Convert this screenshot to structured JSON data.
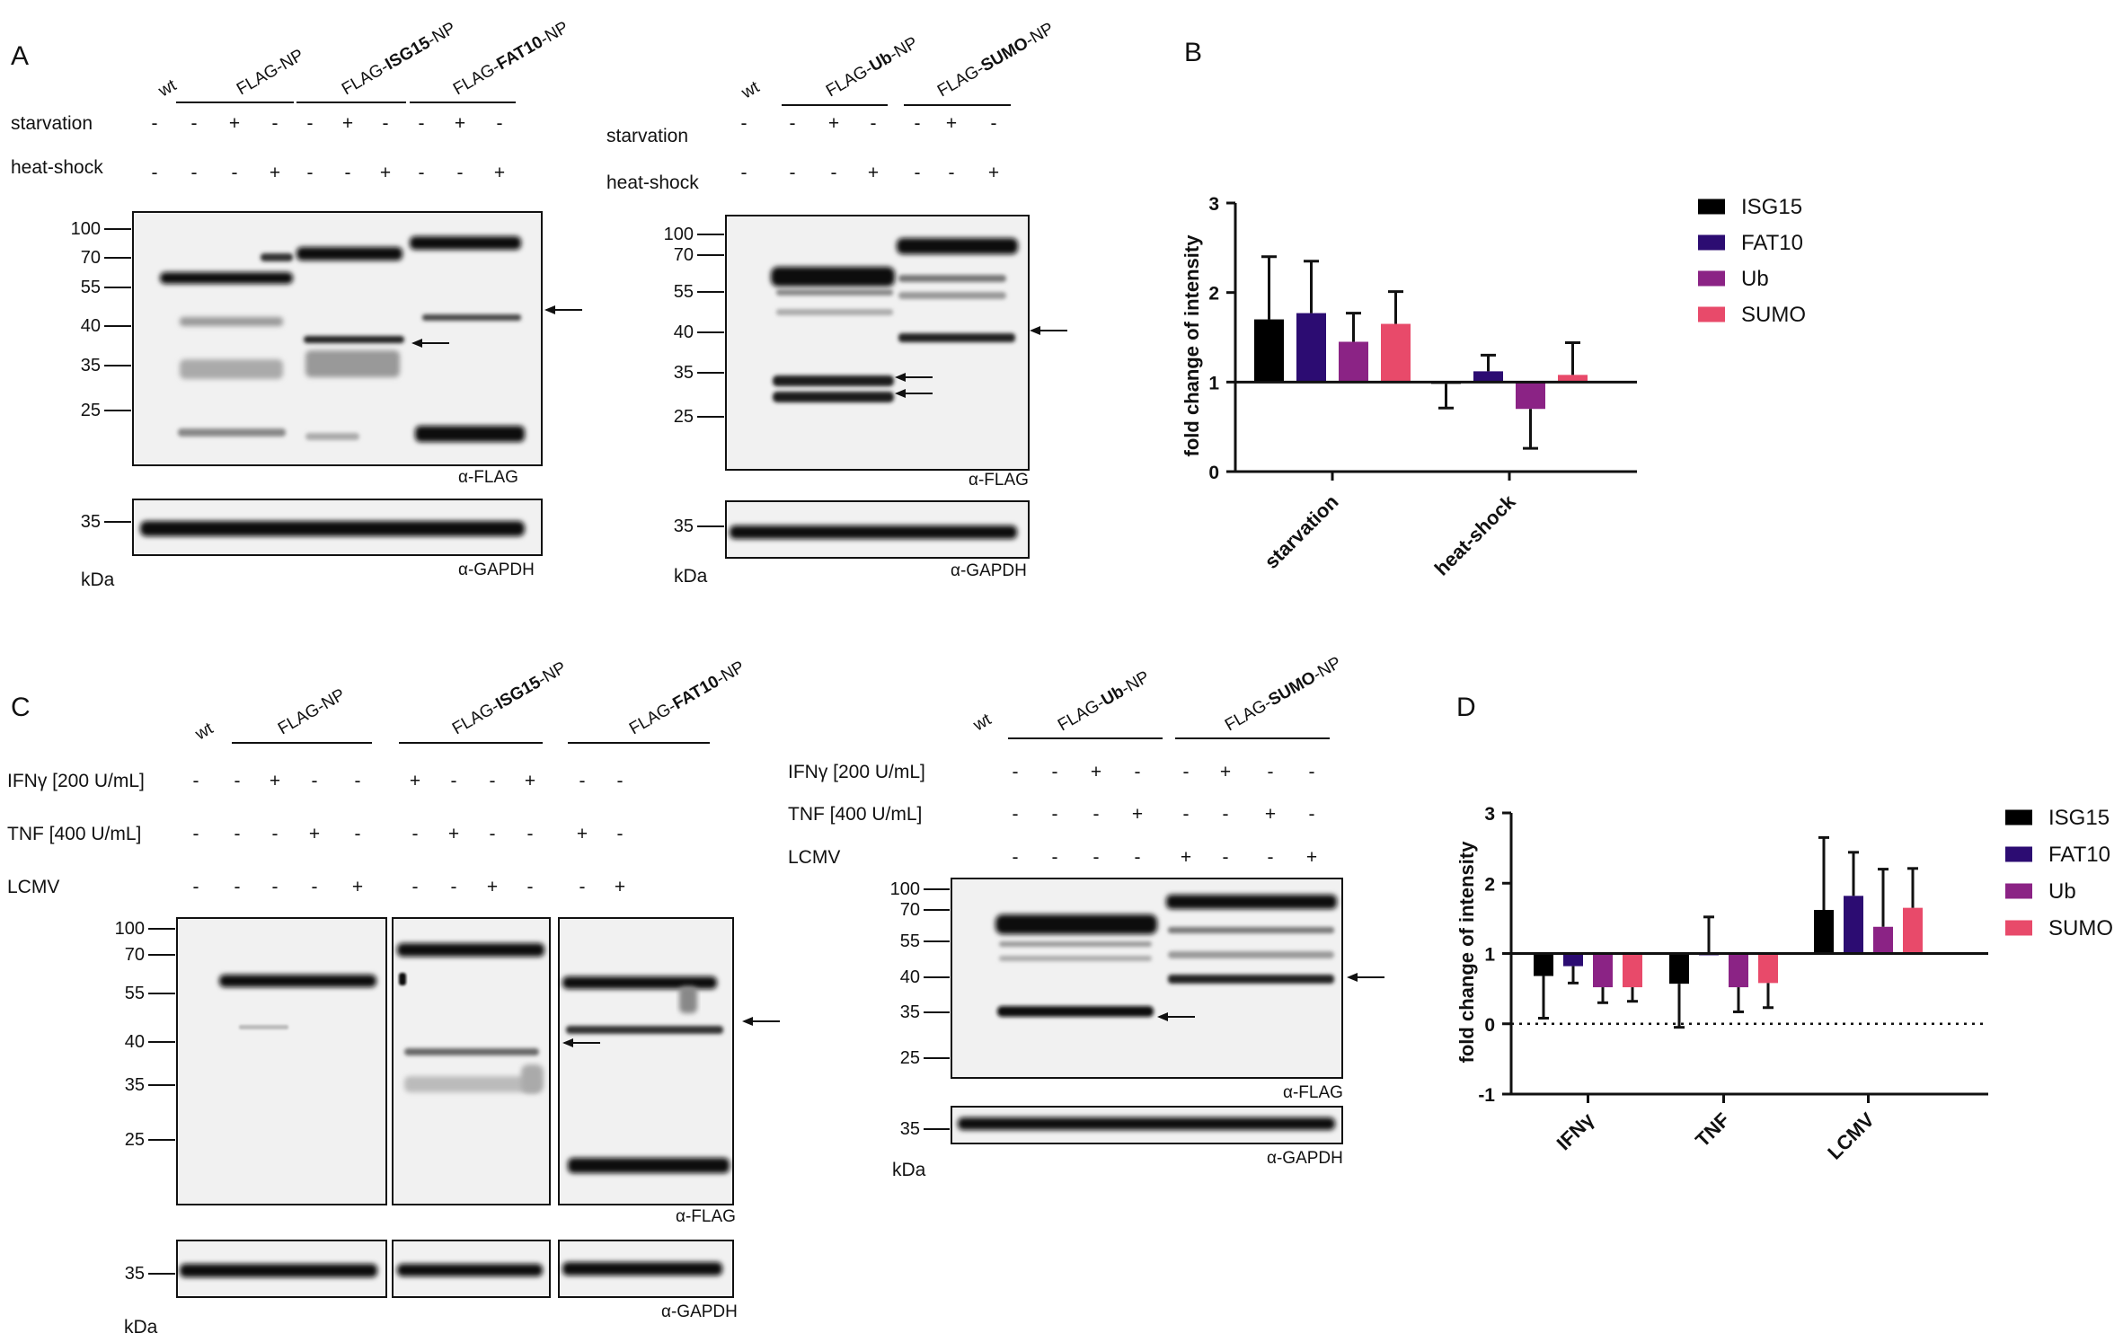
{
  "panels": {
    "A": "A",
    "B": "B",
    "C": "C",
    "D": "D"
  },
  "panelA": {
    "left": {
      "wt": "wt",
      "groups": [
        {
          "prefix": "FLAG-",
          "bold": "",
          "suffix": "NP"
        },
        {
          "prefix": "FLAG-",
          "bold": "ISG15",
          "suffix": "-NP"
        },
        {
          "prefix": "FLAG-",
          "bold": "FAT10",
          "suffix": "-NP"
        }
      ],
      "rows": [
        {
          "label": "starvation",
          "signs": [
            "-",
            "-",
            "+",
            "-",
            "-",
            "+",
            "-",
            "-",
            "+",
            "-"
          ]
        },
        {
          "label": "heat-shock",
          "signs": [
            "-",
            "-",
            "-",
            "+",
            "-",
            "-",
            "+",
            "-",
            "-",
            "+"
          ]
        }
      ],
      "markers": [
        "100",
        "70",
        "55",
        "40",
        "35",
        "25"
      ],
      "gapdh_marker": "35",
      "antibody_top": "α-FLAG",
      "antibody_bottom": "α-GAPDH",
      "kda": "kDa"
    },
    "right": {
      "wt": "wt",
      "groups": [
        {
          "prefix": "FLAG-",
          "bold": "Ub",
          "suffix": "-NP"
        },
        {
          "prefix": "FLAG-",
          "bold": "SUMO",
          "suffix": "-NP"
        }
      ],
      "rows": [
        {
          "label": "starvation",
          "signs": [
            "-",
            "-",
            "+",
            "-",
            "-",
            "+",
            "-"
          ]
        },
        {
          "label": "heat-shock",
          "signs": [
            "-",
            "-",
            "-",
            "+",
            "-",
            "-",
            "+"
          ]
        }
      ],
      "markers": [
        "100",
        "70",
        "55",
        "40",
        "35",
        "25"
      ],
      "gapdh_marker": "35",
      "antibody_top": "α-FLAG",
      "antibody_bottom": "α-GAPDH",
      "kda": "kDa"
    }
  },
  "panelC": {
    "left": {
      "wt": "wt",
      "groups": [
        {
          "prefix": "FLAG-",
          "bold": "",
          "suffix": "NP"
        },
        {
          "prefix": "FLAG-",
          "bold": "ISG15",
          "suffix": "-NP"
        },
        {
          "prefix": "FLAG-",
          "bold": "FAT10",
          "suffix": "-NP"
        }
      ],
      "rows": [
        {
          "label": "IFNγ [200 U/mL]",
          "signs": [
            "-",
            "-",
            "+",
            "-",
            "-",
            "+",
            "-",
            "-",
            "+",
            "-",
            "-"
          ]
        },
        {
          "label": "TNF [400 U/mL]",
          "signs": [
            "-",
            "-",
            "-",
            "+",
            "-",
            "-",
            "+",
            "-",
            "-",
            "+",
            "-"
          ]
        },
        {
          "label": "LCMV",
          "signs": [
            "-",
            "-",
            "-",
            "-",
            "+",
            "-",
            "-",
            "+",
            "-",
            "-",
            "+"
          ]
        }
      ],
      "markers": [
        "100",
        "70",
        "55",
        "40",
        "35",
        "25"
      ],
      "gapdh_marker": "35",
      "antibody_top": "α-FLAG",
      "antibody_bottom": "α-GAPDH",
      "kda": "kDa"
    },
    "right": {
      "wt": "wt",
      "groups": [
        {
          "prefix": "FLAG-",
          "bold": "Ub",
          "suffix": "-NP"
        },
        {
          "prefix": "FLAG-",
          "bold": "SUMO",
          "suffix": "-NP"
        }
      ],
      "rows": [
        {
          "label": "IFNγ [200 U/mL]",
          "signs": [
            "-",
            "-",
            "+",
            "-",
            "-",
            "+",
            "-",
            "-"
          ]
        },
        {
          "label": "TNF [400 U/mL]",
          "signs": [
            "-",
            "-",
            "-",
            "+",
            "-",
            "-",
            "+",
            "-"
          ]
        },
        {
          "label": "LCMV",
          "signs": [
            "-",
            "-",
            "-",
            "-",
            "+",
            "-",
            "-",
            "+"
          ]
        }
      ],
      "markers": [
        "100",
        "70",
        "55",
        "40",
        "35",
        "25"
      ],
      "gapdh_marker": "35",
      "antibody_top": "α-FLAG",
      "antibody_bottom": "α-GAPDH",
      "kda": "kDa"
    }
  },
  "colors": {
    "ISG15": "#000000",
    "FAT10": "#2c0c72",
    "Ub": "#8b2385",
    "SUMO": "#e84a6a"
  },
  "chart_data": [
    {
      "id": "B",
      "type": "bar",
      "title": "",
      "xlabel": "",
      "ylabel": "fold change of intensity",
      "ylim": [
        0,
        3
      ],
      "yticks": [
        "0",
        "1",
        "2",
        "3"
      ],
      "baseline": 1,
      "categories": [
        "starvation",
        "heat-shock"
      ],
      "series": [
        {
          "name": "ISG15",
          "values": [
            1.7,
            0.98
          ],
          "errors": [
            0.7,
            0.27
          ]
        },
        {
          "name": "FAT10",
          "values": [
            1.77,
            1.12
          ],
          "errors": [
            0.58,
            0.18
          ]
        },
        {
          "name": "Ub",
          "values": [
            1.45,
            0.7
          ],
          "errors": [
            0.32,
            0.44
          ]
        },
        {
          "name": "SUMO",
          "values": [
            1.65,
            1.08
          ],
          "errors": [
            0.36,
            0.36
          ]
        }
      ],
      "legend": "top-right"
    },
    {
      "id": "D",
      "type": "bar",
      "title": "",
      "xlabel": "",
      "ylabel": "fold change of intensity",
      "ylim": [
        -1,
        3
      ],
      "yticks": [
        "-1",
        "0",
        "1",
        "2",
        "3"
      ],
      "baseline": 1,
      "zero_line": "dotted",
      "categories": [
        "IFNγ",
        "TNF",
        "LCMV"
      ],
      "series": [
        {
          "name": "ISG15",
          "values": [
            0.68,
            0.57,
            1.62
          ],
          "errors": [
            0.6,
            0.62,
            1.03
          ]
        },
        {
          "name": "FAT10",
          "values": [
            0.82,
            1.0,
            1.82
          ],
          "errors": [
            0.24,
            0.52,
            0.62
          ]
        },
        {
          "name": "Ub",
          "values": [
            0.52,
            0.52,
            1.38
          ],
          "errors": [
            0.22,
            0.35,
            0.82
          ]
        },
        {
          "name": "SUMO",
          "values": [
            0.52,
            0.58,
            1.65
          ],
          "errors": [
            0.2,
            0.35,
            0.56
          ]
        }
      ],
      "legend": "top-right"
    }
  ]
}
